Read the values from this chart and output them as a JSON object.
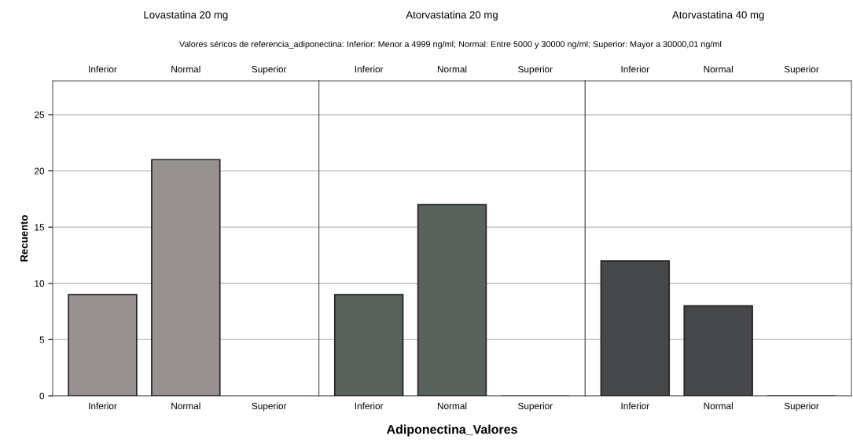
{
  "chart_data": [
    {
      "type": "bar",
      "title": "Lovastatina 20 mg",
      "ylabel": "Recuento",
      "categories": [
        "Inferior",
        "Normal",
        "Superior"
      ],
      "values": [
        9,
        21,
        0
      ],
      "color": "#979291",
      "ylim": [
        0,
        28
      ],
      "yticks": [
        0,
        5,
        10,
        15,
        20,
        25
      ],
      "grid": "y"
    },
    {
      "type": "bar",
      "title": "Atorvastatina 20 mg",
      "subtitle": "Valores séricos de referencia_adiponectina: Inferior: Menor a 4999 ng/ml; Normal: Entre 5000 y 30000 ng/ml; Superior: Mayor a 30000,01 ng/ml",
      "xlabel": "Adiponectina_Valores",
      "categories": [
        "Inferior",
        "Normal",
        "Superior"
      ],
      "values": [
        9,
        17,
        0
      ],
      "color": "#5a625d",
      "ylim": [
        0,
        28
      ],
      "yticks": [
        0,
        5,
        10,
        15,
        20,
        25
      ],
      "tick_labels": "x",
      "grid": "y"
    },
    {
      "type": "bar",
      "title": "Atorvastatina 40 mg",
      "categories": [
        "Inferior",
        "Normal",
        "Superior"
      ],
      "values": [
        12,
        8,
        0
      ],
      "color": "#464749",
      "ylim": [
        0,
        28
      ],
      "yticks": [
        0,
        5,
        10,
        15,
        20,
        25
      ],
      "tick_labels": "x",
      "grid": "y"
    }
  ]
}
